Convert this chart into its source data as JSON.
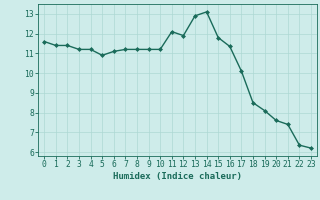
{
  "x": [
    0,
    1,
    2,
    3,
    4,
    5,
    6,
    7,
    8,
    9,
    10,
    11,
    12,
    13,
    14,
    15,
    16,
    17,
    18,
    19,
    20,
    21,
    22,
    23
  ],
  "y": [
    11.6,
    11.4,
    11.4,
    11.2,
    11.2,
    10.9,
    11.1,
    11.2,
    11.2,
    11.2,
    11.2,
    12.1,
    11.9,
    12.9,
    13.1,
    11.8,
    11.35,
    10.1,
    8.5,
    8.1,
    7.6,
    7.4,
    6.35,
    6.2
  ],
  "line_color": "#1a6b5a",
  "marker": "D",
  "marker_size": 2.0,
  "bg_color": "#ceecea",
  "grid_color": "#aed8d4",
  "xlabel": "Humidex (Indice chaleur)",
  "ylim": [
    5.8,
    13.5
  ],
  "xlim": [
    -0.5,
    23.5
  ],
  "yticks": [
    6,
    7,
    8,
    9,
    10,
    11,
    12,
    13
  ],
  "xticks": [
    0,
    1,
    2,
    3,
    4,
    5,
    6,
    7,
    8,
    9,
    10,
    11,
    12,
    13,
    14,
    15,
    16,
    17,
    18,
    19,
    20,
    21,
    22,
    23
  ],
  "tick_color": "#1a6b5a",
  "label_fontsize": 6.5,
  "tick_fontsize": 5.8,
  "linewidth": 1.0
}
